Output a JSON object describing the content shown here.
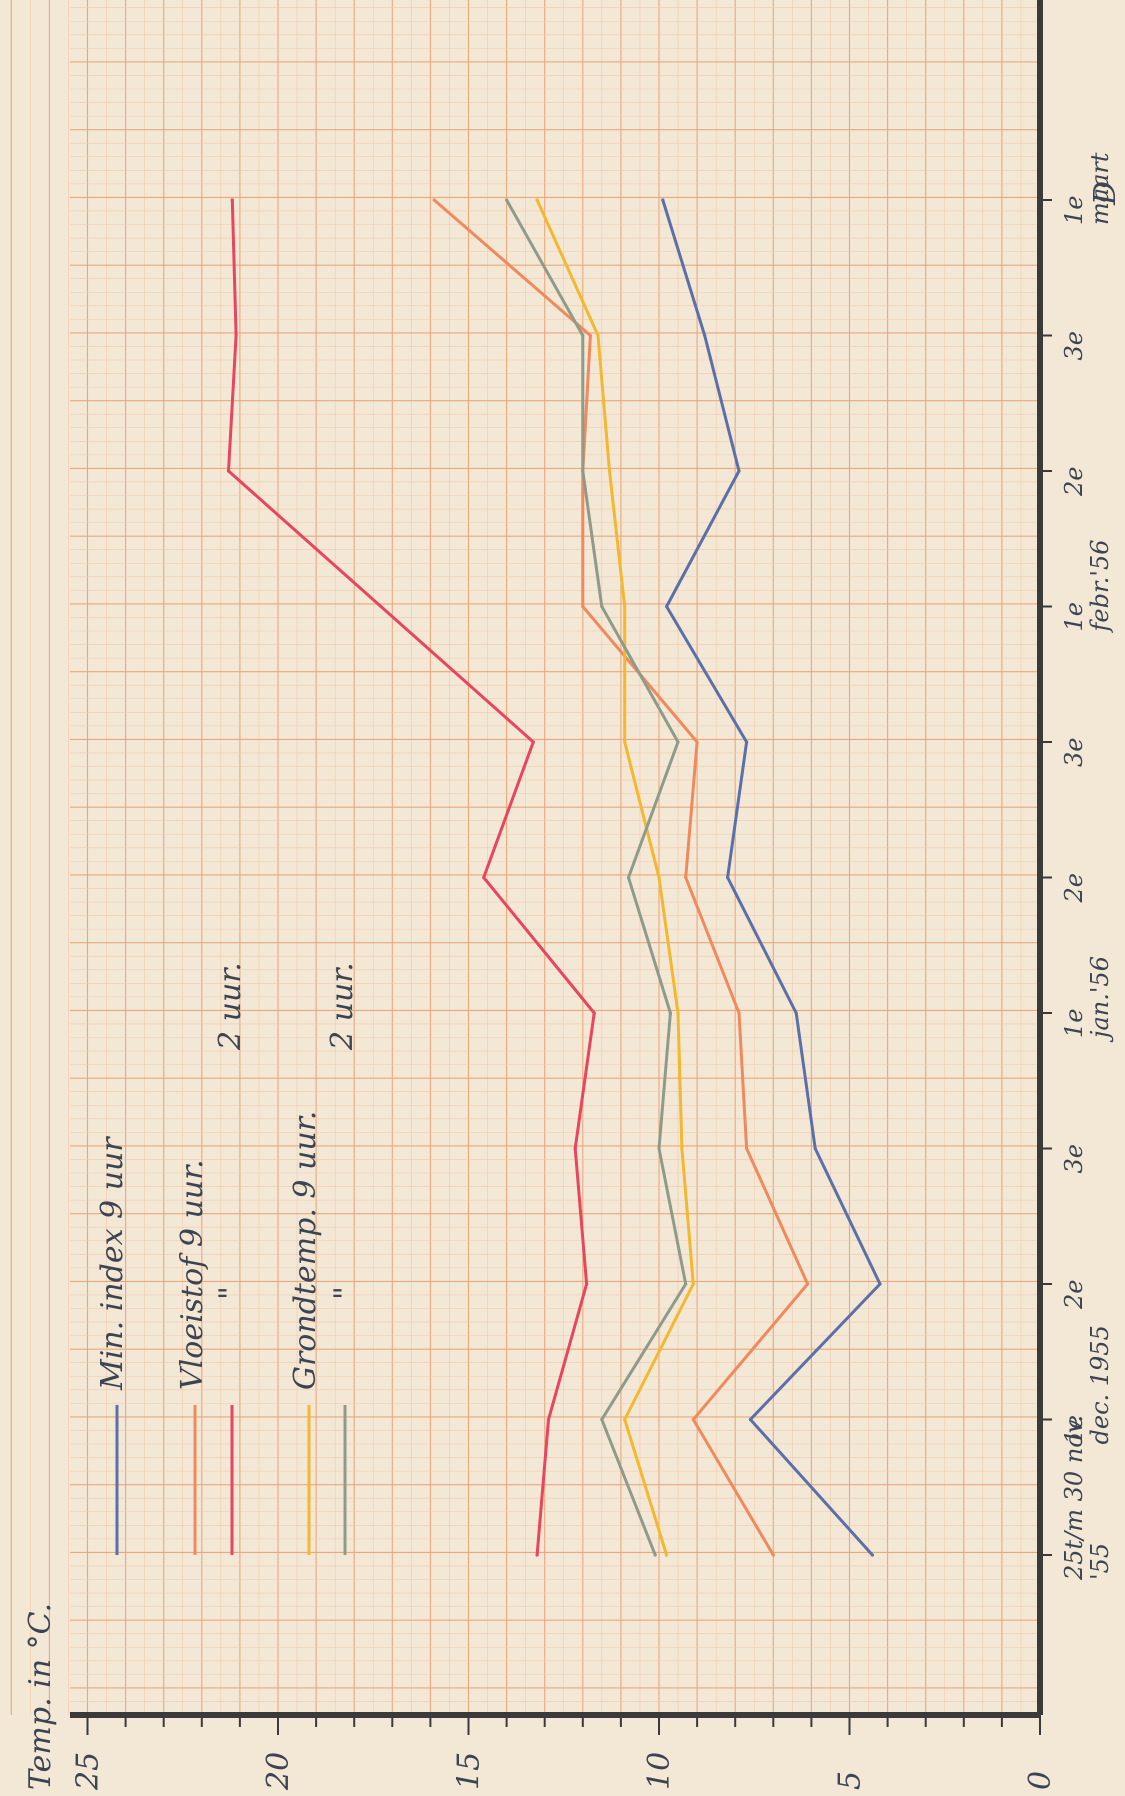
{
  "chart_data": {
    "type": "line",
    "ylabel": "Temp. in °C.",
    "yticks": [
      0,
      5,
      10,
      15,
      20,
      25
    ],
    "ylim": [
      0,
      25
    ],
    "orientation": "rotated-90-clockwise",
    "grid": true,
    "x_positions": [
      "25t/m 30 nov. '55",
      "1e dec. 1955",
      "2e",
      "3e",
      "1e jan.'56",
      "2e",
      "3e",
      "1e febr.'56",
      "2e",
      "3e",
      "1e maart"
    ],
    "x_tick_labels": [
      {
        "label": "25t/m 30 nov.",
        "sub": "'55"
      },
      {
        "label": "1e",
        "sub": "dec. 1955"
      },
      {
        "label": "2e",
        "sub": ""
      },
      {
        "label": "3e",
        "sub": ""
      },
      {
        "label": "1e",
        "sub": "jan.'56"
      },
      {
        "label": "2e",
        "sub": ""
      },
      {
        "label": "3e",
        "sub": ""
      },
      {
        "label": "1e",
        "sub": "febr.'56"
      },
      {
        "label": "2e",
        "sub": ""
      },
      {
        "label": "3e",
        "sub": ""
      },
      {
        "label": "1e",
        "sub": "maart"
      }
    ],
    "series": [
      {
        "name": "Min. index 9 uur",
        "color": "#5b6fa8",
        "values": [
          4.4,
          7.6,
          4.2,
          5.9,
          6.4,
          8.2,
          7.7,
          9.8,
          7.9,
          8.8,
          9.9
        ]
      },
      {
        "name": "Vloeistof 9 uur",
        "color": "#f08a5d",
        "values": [
          7.0,
          9.1,
          6.1,
          7.7,
          7.9,
          9.3,
          9.0,
          12.0,
          12.0,
          11.8,
          15.9
        ]
      },
      {
        "name": "Vloeistof 2 uur",
        "color": "#e8455f",
        "values": [
          13.2,
          12.9,
          11.9,
          12.2,
          11.7,
          14.6,
          13.3,
          17.3,
          21.3,
          21.1,
          21.2
        ]
      },
      {
        "name": "Grondtemp. 9 uur",
        "color": "#f2b830",
        "values": [
          9.8,
          10.9,
          9.1,
          9.4,
          9.5,
          10.0,
          10.9,
          10.9,
          11.3,
          11.6,
          13.2
        ]
      },
      {
        "name": "Grondtemp. 2 uur",
        "color": "#8f9b8a",
        "values": [
          10.1,
          11.5,
          9.3,
          10.0,
          9.7,
          10.8,
          9.5,
          11.5,
          12.0,
          12.0,
          14.0
        ]
      }
    ]
  },
  "legend": {
    "min_index": "Min. index 9 uur",
    "vloeistof_9": "Vloeistof 9 uur.",
    "vloeistof_2_ditto": "\"",
    "vloeistof_2_time": "2 uur.",
    "grond_9": "Grondtemp. 9 uur.",
    "grond_2_ditto": "\"",
    "grond_2_time": "2 uur."
  },
  "corner_mark": "D",
  "background_color": "#f3e8d6",
  "grid_minor_color": "#f0c8a8",
  "grid_major_color": "#e9a87a",
  "axis_color": "#3a3a3a"
}
